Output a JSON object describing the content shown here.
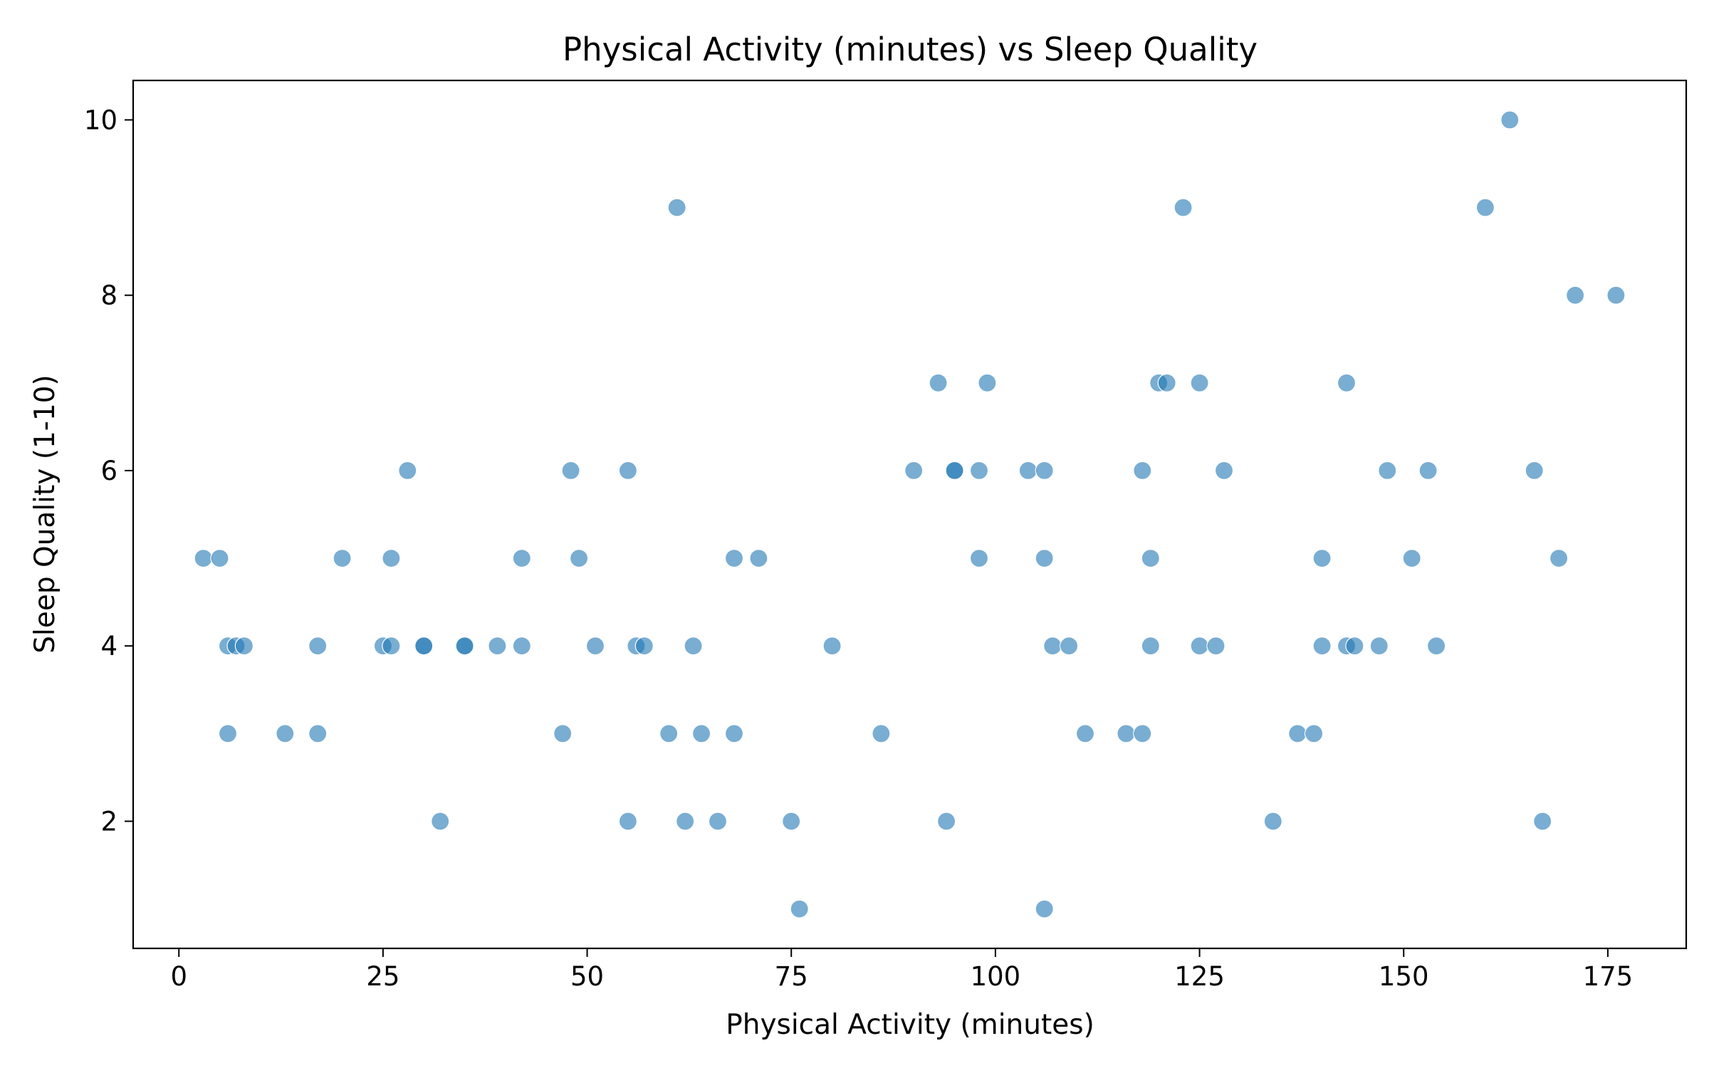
{
  "chart_data": {
    "type": "scatter",
    "title": "Physical Activity (minutes) vs Sleep Quality",
    "xlabel": "Physical Activity (minutes)",
    "ylabel": "Sleep Quality (1-10)",
    "xlim": [
      -5.6,
      184.6
    ],
    "ylim": [
      0.55,
      10.45
    ],
    "xticks": [
      0,
      25,
      50,
      75,
      100,
      125,
      150,
      175
    ],
    "yticks": [
      2,
      4,
      6,
      8,
      10
    ],
    "grid": false,
    "legend": "none",
    "marker_color": "#1f77b4",
    "points": [
      {
        "x": 3,
        "y": 5
      },
      {
        "x": 5,
        "y": 5
      },
      {
        "x": 6,
        "y": 4
      },
      {
        "x": 7,
        "y": 4
      },
      {
        "x": 8,
        "y": 4
      },
      {
        "x": 6,
        "y": 3
      },
      {
        "x": 13,
        "y": 3
      },
      {
        "x": 17,
        "y": 3
      },
      {
        "x": 17,
        "y": 4
      },
      {
        "x": 20,
        "y": 5
      },
      {
        "x": 25,
        "y": 4
      },
      {
        "x": 26,
        "y": 4
      },
      {
        "x": 26,
        "y": 5
      },
      {
        "x": 28,
        "y": 6
      },
      {
        "x": 30,
        "y": 4
      },
      {
        "x": 30,
        "y": 4
      },
      {
        "x": 32,
        "y": 2
      },
      {
        "x": 35,
        "y": 4
      },
      {
        "x": 35,
        "y": 4
      },
      {
        "x": 39,
        "y": 4
      },
      {
        "x": 42,
        "y": 5
      },
      {
        "x": 42,
        "y": 4
      },
      {
        "x": 47,
        "y": 3
      },
      {
        "x": 48,
        "y": 6
      },
      {
        "x": 49,
        "y": 5
      },
      {
        "x": 51,
        "y": 4
      },
      {
        "x": 55,
        "y": 6
      },
      {
        "x": 55,
        "y": 2
      },
      {
        "x": 56,
        "y": 4
      },
      {
        "x": 57,
        "y": 4
      },
      {
        "x": 60,
        "y": 3
      },
      {
        "x": 61,
        "y": 9
      },
      {
        "x": 62,
        "y": 2
      },
      {
        "x": 63,
        "y": 4
      },
      {
        "x": 64,
        "y": 3
      },
      {
        "x": 66,
        "y": 2
      },
      {
        "x": 68,
        "y": 5
      },
      {
        "x": 68,
        "y": 3
      },
      {
        "x": 71,
        "y": 5
      },
      {
        "x": 75,
        "y": 2
      },
      {
        "x": 76,
        "y": 1
      },
      {
        "x": 80,
        "y": 4
      },
      {
        "x": 86,
        "y": 3
      },
      {
        "x": 90,
        "y": 6
      },
      {
        "x": 93,
        "y": 7
      },
      {
        "x": 94,
        "y": 2
      },
      {
        "x": 95,
        "y": 6
      },
      {
        "x": 95,
        "y": 6
      },
      {
        "x": 98,
        "y": 6
      },
      {
        "x": 98,
        "y": 5
      },
      {
        "x": 99,
        "y": 7
      },
      {
        "x": 104,
        "y": 6
      },
      {
        "x": 106,
        "y": 6
      },
      {
        "x": 106,
        "y": 5
      },
      {
        "x": 106,
        "y": 1
      },
      {
        "x": 107,
        "y": 4
      },
      {
        "x": 109,
        "y": 4
      },
      {
        "x": 111,
        "y": 3
      },
      {
        "x": 116,
        "y": 3
      },
      {
        "x": 118,
        "y": 3
      },
      {
        "x": 118,
        "y": 6
      },
      {
        "x": 119,
        "y": 5
      },
      {
        "x": 119,
        "y": 4
      },
      {
        "x": 120,
        "y": 7
      },
      {
        "x": 121,
        "y": 7
      },
      {
        "x": 123,
        "y": 9
      },
      {
        "x": 125,
        "y": 7
      },
      {
        "x": 125,
        "y": 4
      },
      {
        "x": 127,
        "y": 4
      },
      {
        "x": 128,
        "y": 6
      },
      {
        "x": 134,
        "y": 2
      },
      {
        "x": 137,
        "y": 3
      },
      {
        "x": 139,
        "y": 3
      },
      {
        "x": 140,
        "y": 5
      },
      {
        "x": 140,
        "y": 4
      },
      {
        "x": 143,
        "y": 7
      },
      {
        "x": 143,
        "y": 4
      },
      {
        "x": 144,
        "y": 4
      },
      {
        "x": 147,
        "y": 4
      },
      {
        "x": 148,
        "y": 6
      },
      {
        "x": 151,
        "y": 5
      },
      {
        "x": 153,
        "y": 6
      },
      {
        "x": 154,
        "y": 4
      },
      {
        "x": 160,
        "y": 9
      },
      {
        "x": 163,
        "y": 10
      },
      {
        "x": 166,
        "y": 6
      },
      {
        "x": 167,
        "y": 2
      },
      {
        "x": 169,
        "y": 5
      },
      {
        "x": 171,
        "y": 8
      },
      {
        "x": 176,
        "y": 8
      }
    ]
  }
}
